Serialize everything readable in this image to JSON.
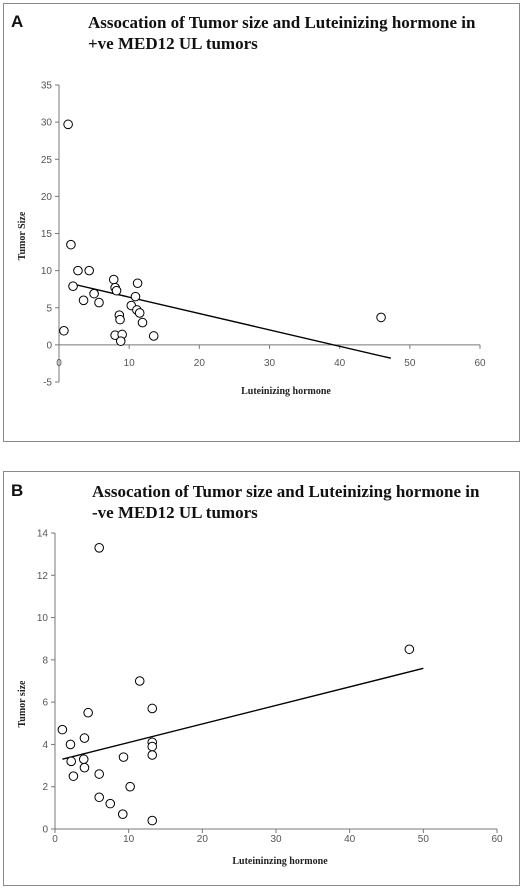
{
  "chart_data": [
    {
      "panel": "A",
      "type": "scatter",
      "title_lines": [
        "Assocation of Tumor size and Luteinizing hormone in",
        "+ve MED12 UL tumors"
      ],
      "xlabel": "Luteinizing hormone",
      "ylabel": "Tumor Size",
      "xlim": [
        0,
        60
      ],
      "ylim": [
        -5,
        35
      ],
      "xticks": [
        0,
        10,
        20,
        30,
        40,
        50,
        60
      ],
      "yticks": [
        -5,
        0,
        5,
        10,
        15,
        20,
        25,
        30,
        35
      ],
      "grid": false,
      "points": [
        {
          "x": 1.3,
          "y": 29.7
        },
        {
          "x": 1.7,
          "y": 13.5
        },
        {
          "x": 2.0,
          "y": 7.9
        },
        {
          "x": 2.7,
          "y": 10.0
        },
        {
          "x": 3.5,
          "y": 6.0
        },
        {
          "x": 4.3,
          "y": 10.0
        },
        {
          "x": 5.0,
          "y": 6.9
        },
        {
          "x": 5.7,
          "y": 5.7
        },
        {
          "x": 0.7,
          "y": 1.9
        },
        {
          "x": 7.8,
          "y": 8.8
        },
        {
          "x": 8.0,
          "y": 7.7
        },
        {
          "x": 8.2,
          "y": 7.3
        },
        {
          "x": 8.6,
          "y": 4.0
        },
        {
          "x": 8.7,
          "y": 3.4
        },
        {
          "x": 8.0,
          "y": 1.3
        },
        {
          "x": 9.0,
          "y": 1.4
        },
        {
          "x": 8.8,
          "y": 0.5
        },
        {
          "x": 10.3,
          "y": 5.3
        },
        {
          "x": 10.9,
          "y": 6.5
        },
        {
          "x": 11.2,
          "y": 8.3
        },
        {
          "x": 11.1,
          "y": 4.7
        },
        {
          "x": 11.5,
          "y": 4.3
        },
        {
          "x": 11.9,
          "y": 3.0
        },
        {
          "x": 13.5,
          "y": 1.2
        },
        {
          "x": 45.9,
          "y": 3.7
        }
      ],
      "trendline": {
        "x": [
          1.5,
          47.3
        ],
        "y": [
          8.3,
          -1.8
        ]
      }
    },
    {
      "panel": "B",
      "type": "scatter",
      "title_lines": [
        "Assocation of Tumor size and Luteinizing hormone in",
        "-ve MED12 UL tumors"
      ],
      "xlabel": "Luteininzing hormone",
      "ylabel": "Tumor size",
      "xlim": [
        0,
        60
      ],
      "ylim": [
        0,
        14
      ],
      "xticks": [
        0,
        10,
        20,
        30,
        40,
        50,
        60
      ],
      "yticks": [
        0,
        2,
        4,
        6,
        8,
        10,
        12,
        14
      ],
      "grid": false,
      "points": [
        {
          "x": 6.0,
          "y": 13.3
        },
        {
          "x": 48.1,
          "y": 8.5
        },
        {
          "x": 11.5,
          "y": 7.0
        },
        {
          "x": 13.2,
          "y": 5.7
        },
        {
          "x": 1.0,
          "y": 4.7
        },
        {
          "x": 4.5,
          "y": 5.5
        },
        {
          "x": 4.0,
          "y": 4.3
        },
        {
          "x": 2.1,
          "y": 4.0
        },
        {
          "x": 13.2,
          "y": 4.1
        },
        {
          "x": 13.2,
          "y": 3.9
        },
        {
          "x": 13.2,
          "y": 3.5
        },
        {
          "x": 2.2,
          "y": 3.2
        },
        {
          "x": 3.9,
          "y": 3.3
        },
        {
          "x": 9.3,
          "y": 3.4
        },
        {
          "x": 4.0,
          "y": 2.9
        },
        {
          "x": 2.5,
          "y": 2.5
        },
        {
          "x": 6.0,
          "y": 2.6
        },
        {
          "x": 10.2,
          "y": 2.0
        },
        {
          "x": 6.0,
          "y": 1.5
        },
        {
          "x": 7.5,
          "y": 1.2
        },
        {
          "x": 9.2,
          "y": 0.7
        },
        {
          "x": 13.2,
          "y": 0.4
        }
      ],
      "trendline": {
        "x": [
          1.0,
          50.0
        ],
        "y": [
          3.3,
          7.6
        ]
      }
    }
  ]
}
